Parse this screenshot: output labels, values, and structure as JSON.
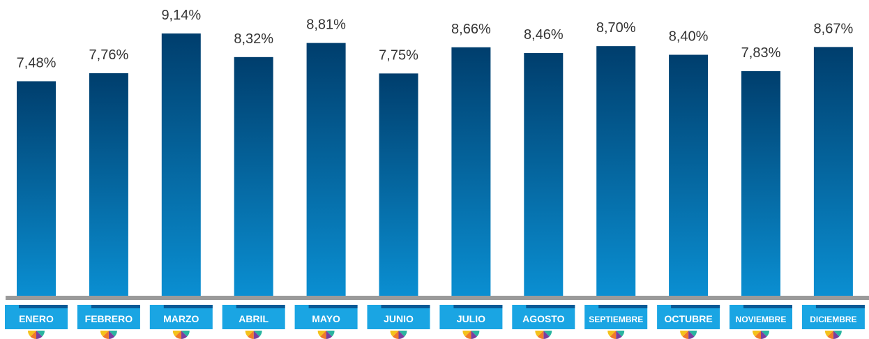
{
  "chart_data": {
    "type": "bar",
    "categories": [
      "ENERO",
      "FEBRERO",
      "MARZO",
      "ABRIL",
      "MAYO",
      "JUNIO",
      "JULIO",
      "AGOSTO",
      "SEPTIEMBRE",
      "OCTUBRE",
      "NOVIEMBRE",
      "DICIEMBRE"
    ],
    "values": [
      7.48,
      7.76,
      9.14,
      8.32,
      8.81,
      7.75,
      8.66,
      8.46,
      8.7,
      8.4,
      7.83,
      8.67
    ],
    "value_labels": [
      "7,48%",
      "7,76%",
      "9,14%",
      "8,32%",
      "8,81%",
      "7,75%",
      "8,66%",
      "8,46%",
      "8,70%",
      "8,40%",
      "7,83%",
      "8,67%"
    ],
    "color": "#0a7fc4"
  }
}
